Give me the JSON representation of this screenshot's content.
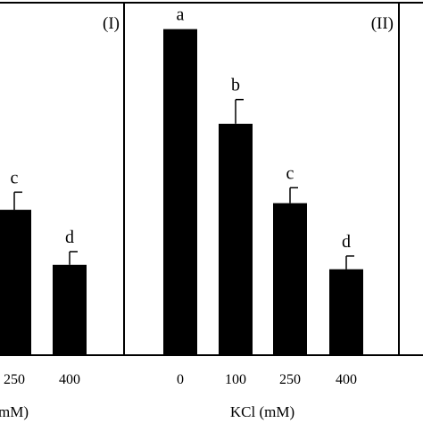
{
  "chart_data": [
    {
      "type": "bar",
      "panel_label": "(I)",
      "xlabel": "mM)",
      "ylabel": "",
      "categories": [
        "250",
        "400"
      ],
      "values": [
        66,
        41
      ],
      "errors": [
        8,
        6
      ],
      "letters": [
        "c",
        "d"
      ],
      "bar_color": "#000000",
      "ylim": [
        0,
        160
      ],
      "grid": false
    },
    {
      "type": "bar",
      "panel_label": "(II)",
      "xlabel": "KCl (mM)",
      "ylabel": "",
      "categories": [
        "0",
        "100",
        "250",
        "400"
      ],
      "values": [
        148,
        105,
        69,
        39
      ],
      "errors": [
        0,
        11,
        7,
        6
      ],
      "letters": [
        "a",
        "b",
        "c",
        "d"
      ],
      "bar_color": "#000000",
      "ylim": [
        0,
        160
      ],
      "grid": false
    }
  ]
}
